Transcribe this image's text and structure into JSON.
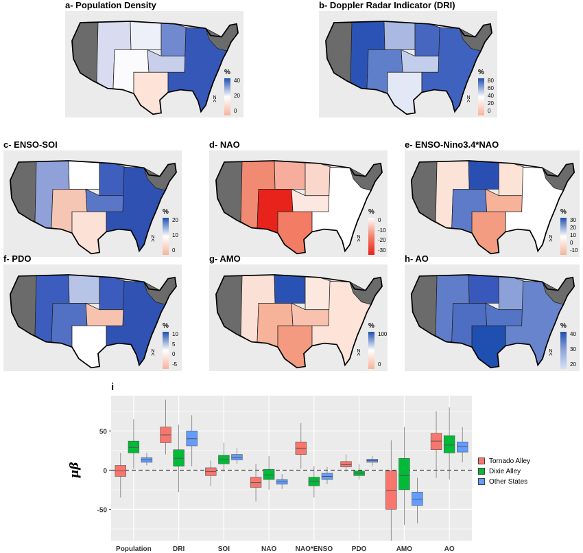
{
  "panels": [
    {
      "id": "a",
      "title": "a- Population Density",
      "legend": {
        "unit": "%",
        "ticks": [
          "40",
          "20",
          "0"
        ],
        "colors": [
          "#1f4fb0",
          "#ffffff",
          "#f6b39a"
        ]
      }
    },
    {
      "id": "b",
      "title": "b- Doppler Radar Indicator (DRI)",
      "legend": {
        "unit": "%",
        "ticks": [
          "80",
          "60",
          "40",
          "20",
          "0"
        ],
        "colors": [
          "#1f4fb0",
          "#ffffff",
          "#f6b39a"
        ]
      }
    },
    {
      "id": "c",
      "title": "c- ENSO-SOI",
      "legend": {
        "unit": "%",
        "ticks": [
          "20",
          "10",
          "0"
        ],
        "colors": [
          "#1f4fb0",
          "#ffffff",
          "#f6b39a"
        ]
      }
    },
    {
      "id": "d",
      "title": "d- NAO",
      "legend": {
        "unit": "%",
        "ticks": [
          "0",
          "-10",
          "-20",
          "-30"
        ],
        "colors": [
          "#ffffff",
          "#f4826a",
          "#e8231b"
        ]
      }
    },
    {
      "id": "e",
      "title": "e- ENSO-Nino3.4*NAO",
      "legend": {
        "unit": "%",
        "ticks": [
          "30",
          "20",
          "10",
          "0",
          "-10"
        ],
        "colors": [
          "#1f4fb0",
          "#ffffff",
          "#f6b39a"
        ]
      }
    },
    {
      "id": "f",
      "title": "f- PDO",
      "legend": {
        "unit": "%",
        "ticks": [
          "10",
          "5",
          "0",
          "-5"
        ],
        "colors": [
          "#1f4fb0",
          "#ffffff",
          "#f6b39a"
        ]
      }
    },
    {
      "id": "g",
      "title": "g- AMO",
      "legend": {
        "unit": "%",
        "ticks": [
          "100",
          "0"
        ],
        "colors": [
          "#1f4fb0",
          "#ffffff",
          "#f6b39a"
        ]
      }
    },
    {
      "id": "h",
      "title": "h- AO",
      "legend": {
        "unit": "%",
        "ticks": [
          "40",
          "30",
          "20"
        ],
        "colors": [
          "#1f4fb0",
          "#8fa6dc",
          "#d8e0f4"
        ]
      }
    }
  ],
  "north_label": "N",
  "chart_data": {
    "type": "boxplot",
    "title": "i",
    "ylabel": "μβ",
    "ylim": [
      -90,
      95
    ],
    "yticks": [
      -50,
      0,
      50
    ],
    "reference_line": 0,
    "categories": [
      "Population",
      "DRI",
      "SOI",
      "NAO",
      "NAO*ENSO",
      "PDO",
      "AMO",
      "AO"
    ],
    "colors": {
      "Tornado Alley": "#f8766d",
      "Dixie Alley": "#00ba38",
      "Other States": "#619cff"
    },
    "series": [
      {
        "name": "Tornado Alley",
        "boxes": [
          {
            "min": -35,
            "q1": -8,
            "median": -1,
            "q3": 6,
            "max": 22
          },
          {
            "min": 20,
            "q1": 35,
            "median": 45,
            "q3": 55,
            "max": 90
          },
          {
            "min": -20,
            "q1": -7,
            "median": -2,
            "q3": 3,
            "max": 12
          },
          {
            "min": -40,
            "q1": -22,
            "median": -16,
            "q3": -9,
            "max": 8
          },
          {
            "min": 2,
            "q1": 20,
            "median": 28,
            "q3": 36,
            "max": 60
          },
          {
            "min": -2,
            "q1": 4,
            "median": 7,
            "q3": 11,
            "max": 20
          },
          {
            "min": -90,
            "q1": -50,
            "median": -26,
            "q3": -1,
            "max": 38
          },
          {
            "min": -10,
            "q1": 26,
            "median": 37,
            "q3": 47,
            "max": 75
          }
        ]
      },
      {
        "name": "Dixie Alley",
        "boxes": [
          {
            "min": 2,
            "q1": 22,
            "median": 29,
            "q3": 37,
            "max": 65
          },
          {
            "min": -28,
            "q1": 5,
            "median": 15,
            "q3": 26,
            "max": 58
          },
          {
            "min": -2,
            "q1": 8,
            "median": 13,
            "q3": 19,
            "max": 35
          },
          {
            "min": -25,
            "q1": -12,
            "median": -6,
            "q3": 1,
            "max": 18
          },
          {
            "min": -35,
            "q1": -20,
            "median": -14,
            "q3": -9,
            "max": 5
          },
          {
            "min": -12,
            "q1": -7,
            "median": -4,
            "q3": -1,
            "max": 8
          },
          {
            "min": -70,
            "q1": -25,
            "median": -7,
            "q3": 15,
            "max": 55
          },
          {
            "min": -12,
            "q1": 22,
            "median": 32,
            "q3": 44,
            "max": 80
          }
        ]
      },
      {
        "name": "Other States",
        "boxes": [
          {
            "min": 6,
            "q1": 10,
            "median": 13,
            "q3": 16,
            "max": 22
          },
          {
            "min": 5,
            "q1": 31,
            "median": 40,
            "q3": 50,
            "max": 70
          },
          {
            "min": 8,
            "q1": 13,
            "median": 16,
            "q3": 20,
            "max": 28
          },
          {
            "min": -24,
            "q1": -18,
            "median": -15,
            "q3": -12,
            "max": -5
          },
          {
            "min": -18,
            "q1": -12,
            "median": -8,
            "q3": -4,
            "max": 4
          },
          {
            "min": 5,
            "q1": 10,
            "median": 12,
            "q3": 14,
            "max": 18
          },
          {
            "min": -68,
            "q1": -45,
            "median": -37,
            "q3": -28,
            "max": -10
          },
          {
            "min": 10,
            "q1": 23,
            "median": 30,
            "q3": 36,
            "max": 55
          }
        ]
      }
    ],
    "legend_position": "right"
  }
}
